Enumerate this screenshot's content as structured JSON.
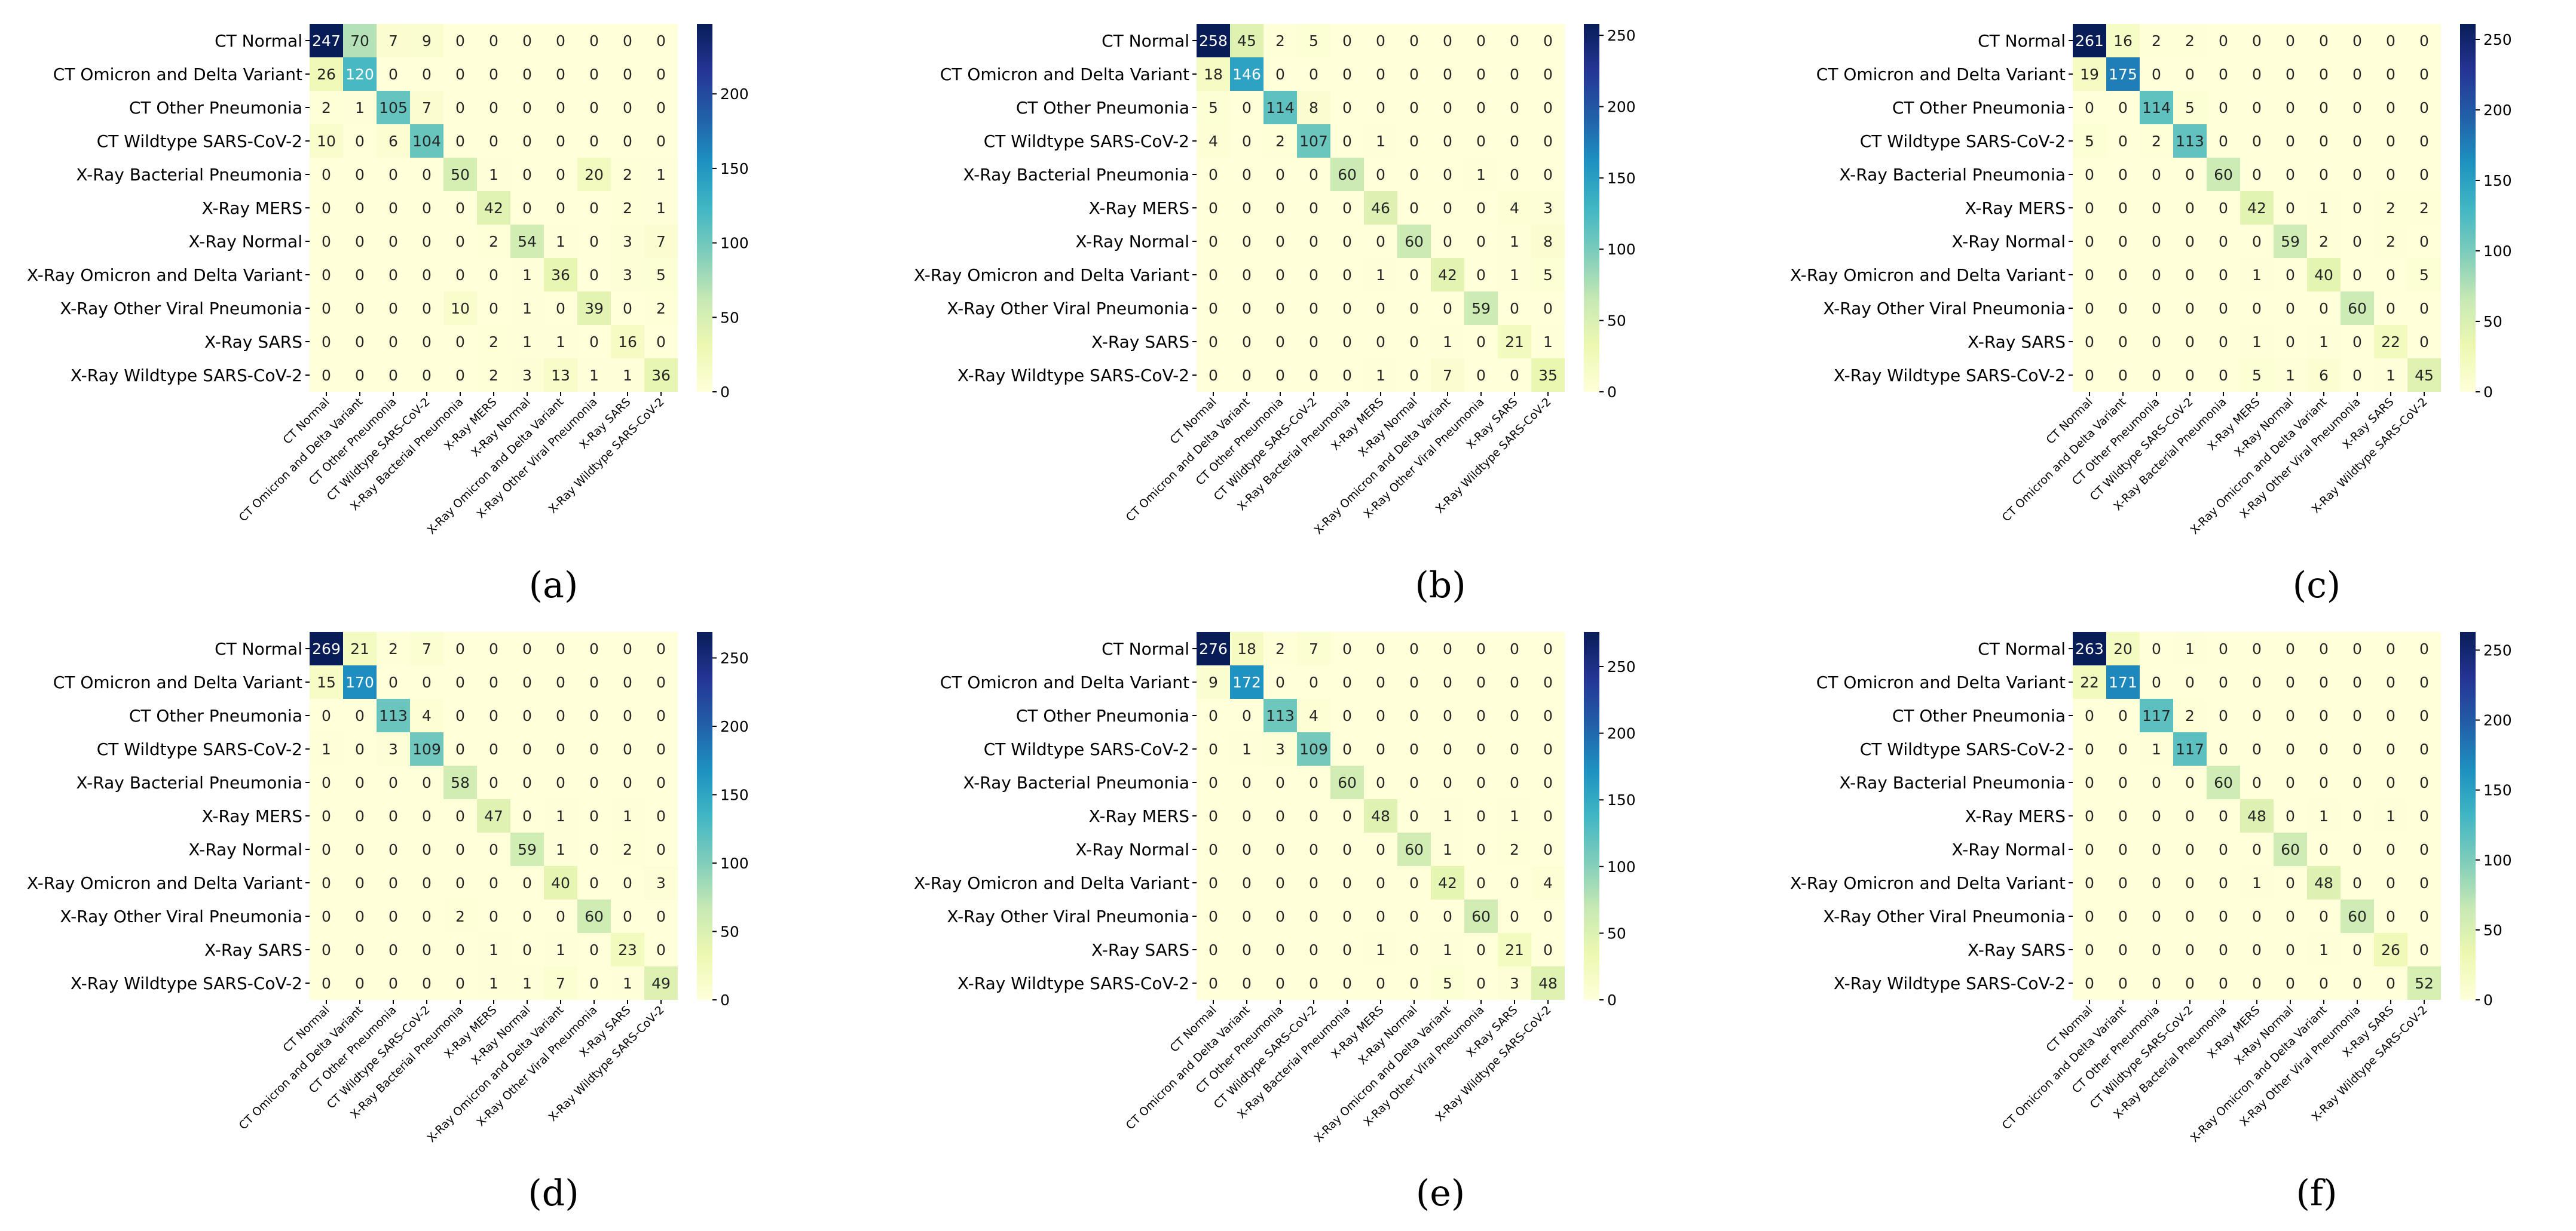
{
  "classes": [
    "CT Normal",
    "CT Omicron and Delta Variant",
    "CT Other Pneumonia",
    "CT Wildtype SARS-CoV-2",
    "X-Ray Bacterial Pneumonia",
    "X-Ray MERS",
    "X-Ray Normal",
    "X-Ray Omicron and Delta Variant",
    "X-Ray Other Viral Pneumonia",
    "X-Ray SARS",
    "X-Ray Wildtype SARS-CoV-2"
  ],
  "colormap": [
    "#ffffd9",
    "#edf8b1",
    "#c7e9b4",
    "#7fcdbb",
    "#41b6c4",
    "#1d91c0",
    "#225ea8",
    "#253494",
    "#081d58"
  ],
  "chart_data": [
    {
      "type": "heatmap",
      "caption": "(a)",
      "colorbar_max": 247,
      "colorbar_ticks": [
        0,
        50,
        100,
        150,
        200
      ],
      "matrix": [
        [
          247,
          70,
          7,
          9,
          0,
          0,
          0,
          0,
          0,
          0,
          0
        ],
        [
          26,
          120,
          0,
          0,
          0,
          0,
          0,
          0,
          0,
          0,
          0
        ],
        [
          2,
          1,
          105,
          7,
          0,
          0,
          0,
          0,
          0,
          0,
          0
        ],
        [
          10,
          0,
          6,
          104,
          0,
          0,
          0,
          0,
          0,
          0,
          0
        ],
        [
          0,
          0,
          0,
          0,
          50,
          1,
          0,
          0,
          20,
          2,
          1
        ],
        [
          0,
          0,
          0,
          0,
          0,
          42,
          0,
          0,
          0,
          2,
          1
        ],
        [
          0,
          0,
          0,
          0,
          0,
          2,
          54,
          1,
          0,
          3,
          7
        ],
        [
          0,
          0,
          0,
          0,
          0,
          0,
          1,
          36,
          0,
          3,
          5
        ],
        [
          0,
          0,
          0,
          0,
          10,
          0,
          1,
          0,
          39,
          0,
          2
        ],
        [
          0,
          0,
          0,
          0,
          0,
          2,
          1,
          1,
          0,
          16,
          0
        ],
        [
          0,
          0,
          0,
          0,
          0,
          2,
          3,
          13,
          1,
          1,
          36
        ]
      ]
    },
    {
      "type": "heatmap",
      "caption": "(b)",
      "colorbar_max": 258,
      "colorbar_ticks": [
        0,
        50,
        100,
        150,
        200,
        250
      ],
      "matrix": [
        [
          258,
          45,
          2,
          5,
          0,
          0,
          0,
          0,
          0,
          0,
          0
        ],
        [
          18,
          146,
          0,
          0,
          0,
          0,
          0,
          0,
          0,
          0,
          0
        ],
        [
          5,
          0,
          114,
          8,
          0,
          0,
          0,
          0,
          0,
          0,
          0
        ],
        [
          4,
          0,
          2,
          107,
          0,
          1,
          0,
          0,
          0,
          0,
          0
        ],
        [
          0,
          0,
          0,
          0,
          60,
          0,
          0,
          0,
          1,
          0,
          0
        ],
        [
          0,
          0,
          0,
          0,
          0,
          46,
          0,
          0,
          0,
          4,
          3
        ],
        [
          0,
          0,
          0,
          0,
          0,
          0,
          60,
          0,
          0,
          1,
          8
        ],
        [
          0,
          0,
          0,
          0,
          0,
          1,
          0,
          42,
          0,
          1,
          5
        ],
        [
          0,
          0,
          0,
          0,
          0,
          0,
          0,
          0,
          59,
          0,
          0
        ],
        [
          0,
          0,
          0,
          0,
          0,
          0,
          0,
          1,
          0,
          21,
          1
        ],
        [
          0,
          0,
          0,
          0,
          0,
          1,
          0,
          7,
          0,
          0,
          35
        ]
      ]
    },
    {
      "type": "heatmap",
      "caption": "(c)",
      "colorbar_max": 261,
      "colorbar_ticks": [
        0,
        50,
        100,
        150,
        200,
        250
      ],
      "matrix": [
        [
          261,
          16,
          2,
          2,
          0,
          0,
          0,
          0,
          0,
          0,
          0
        ],
        [
          19,
          175,
          0,
          0,
          0,
          0,
          0,
          0,
          0,
          0,
          0
        ],
        [
          0,
          0,
          114,
          5,
          0,
          0,
          0,
          0,
          0,
          0,
          0
        ],
        [
          5,
          0,
          2,
          113,
          0,
          0,
          0,
          0,
          0,
          0,
          0
        ],
        [
          0,
          0,
          0,
          0,
          60,
          0,
          0,
          0,
          0,
          0,
          0
        ],
        [
          0,
          0,
          0,
          0,
          0,
          42,
          0,
          1,
          0,
          2,
          2
        ],
        [
          0,
          0,
          0,
          0,
          0,
          0,
          59,
          2,
          0,
          2,
          0
        ],
        [
          0,
          0,
          0,
          0,
          0,
          1,
          0,
          40,
          0,
          0,
          5
        ],
        [
          0,
          0,
          0,
          0,
          0,
          0,
          0,
          0,
          60,
          0,
          0
        ],
        [
          0,
          0,
          0,
          0,
          0,
          1,
          0,
          1,
          0,
          22,
          0
        ],
        [
          0,
          0,
          0,
          0,
          0,
          5,
          1,
          6,
          0,
          1,
          45
        ]
      ]
    },
    {
      "type": "heatmap",
      "caption": "(d)",
      "colorbar_max": 269,
      "colorbar_ticks": [
        0,
        50,
        100,
        150,
        200,
        250
      ],
      "matrix": [
        [
          269,
          21,
          2,
          7,
          0,
          0,
          0,
          0,
          0,
          0,
          0
        ],
        [
          15,
          170,
          0,
          0,
          0,
          0,
          0,
          0,
          0,
          0,
          0
        ],
        [
          0,
          0,
          113,
          4,
          0,
          0,
          0,
          0,
          0,
          0,
          0
        ],
        [
          1,
          0,
          3,
          109,
          0,
          0,
          0,
          0,
          0,
          0,
          0
        ],
        [
          0,
          0,
          0,
          0,
          58,
          0,
          0,
          0,
          0,
          0,
          0
        ],
        [
          0,
          0,
          0,
          0,
          0,
          47,
          0,
          1,
          0,
          1,
          0
        ],
        [
          0,
          0,
          0,
          0,
          0,
          0,
          59,
          1,
          0,
          2,
          0
        ],
        [
          0,
          0,
          0,
          0,
          0,
          0,
          0,
          40,
          0,
          0,
          3
        ],
        [
          0,
          0,
          0,
          0,
          2,
          0,
          0,
          0,
          60,
          0,
          0
        ],
        [
          0,
          0,
          0,
          0,
          0,
          1,
          0,
          1,
          0,
          23,
          0
        ],
        [
          0,
          0,
          0,
          0,
          0,
          1,
          1,
          7,
          0,
          1,
          49
        ]
      ]
    },
    {
      "type": "heatmap",
      "caption": "(e)",
      "colorbar_max": 276,
      "colorbar_ticks": [
        0,
        50,
        100,
        150,
        200,
        250
      ],
      "matrix": [
        [
          276,
          18,
          2,
          7,
          0,
          0,
          0,
          0,
          0,
          0,
          0
        ],
        [
          9,
          172,
          0,
          0,
          0,
          0,
          0,
          0,
          0,
          0,
          0
        ],
        [
          0,
          0,
          113,
          4,
          0,
          0,
          0,
          0,
          0,
          0,
          0
        ],
        [
          0,
          1,
          3,
          109,
          0,
          0,
          0,
          0,
          0,
          0,
          0
        ],
        [
          0,
          0,
          0,
          0,
          60,
          0,
          0,
          0,
          0,
          0,
          0
        ],
        [
          0,
          0,
          0,
          0,
          0,
          48,
          0,
          1,
          0,
          1,
          0
        ],
        [
          0,
          0,
          0,
          0,
          0,
          0,
          60,
          1,
          0,
          2,
          0
        ],
        [
          0,
          0,
          0,
          0,
          0,
          0,
          0,
          42,
          0,
          0,
          4
        ],
        [
          0,
          0,
          0,
          0,
          0,
          0,
          0,
          0,
          60,
          0,
          0
        ],
        [
          0,
          0,
          0,
          0,
          0,
          1,
          0,
          1,
          0,
          21,
          0
        ],
        [
          0,
          0,
          0,
          0,
          0,
          0,
          0,
          5,
          0,
          3,
          48
        ]
      ]
    },
    {
      "type": "heatmap",
      "caption": "(f)",
      "colorbar_max": 263,
      "colorbar_ticks": [
        0,
        50,
        100,
        150,
        200,
        250
      ],
      "matrix": [
        [
          263,
          20,
          0,
          1,
          0,
          0,
          0,
          0,
          0,
          0,
          0
        ],
        [
          22,
          171,
          0,
          0,
          0,
          0,
          0,
          0,
          0,
          0,
          0
        ],
        [
          0,
          0,
          117,
          2,
          0,
          0,
          0,
          0,
          0,
          0,
          0
        ],
        [
          0,
          0,
          1,
          117,
          0,
          0,
          0,
          0,
          0,
          0,
          0
        ],
        [
          0,
          0,
          0,
          0,
          60,
          0,
          0,
          0,
          0,
          0,
          0
        ],
        [
          0,
          0,
          0,
          0,
          0,
          48,
          0,
          1,
          0,
          1,
          0
        ],
        [
          0,
          0,
          0,
          0,
          0,
          0,
          60,
          0,
          0,
          0,
          0
        ],
        [
          0,
          0,
          0,
          0,
          0,
          1,
          0,
          48,
          0,
          0,
          0
        ],
        [
          0,
          0,
          0,
          0,
          0,
          0,
          0,
          0,
          60,
          0,
          0
        ],
        [
          0,
          0,
          0,
          0,
          0,
          0,
          0,
          1,
          0,
          26,
          0
        ],
        [
          0,
          0,
          0,
          0,
          0,
          0,
          0,
          0,
          0,
          0,
          52
        ]
      ]
    }
  ]
}
